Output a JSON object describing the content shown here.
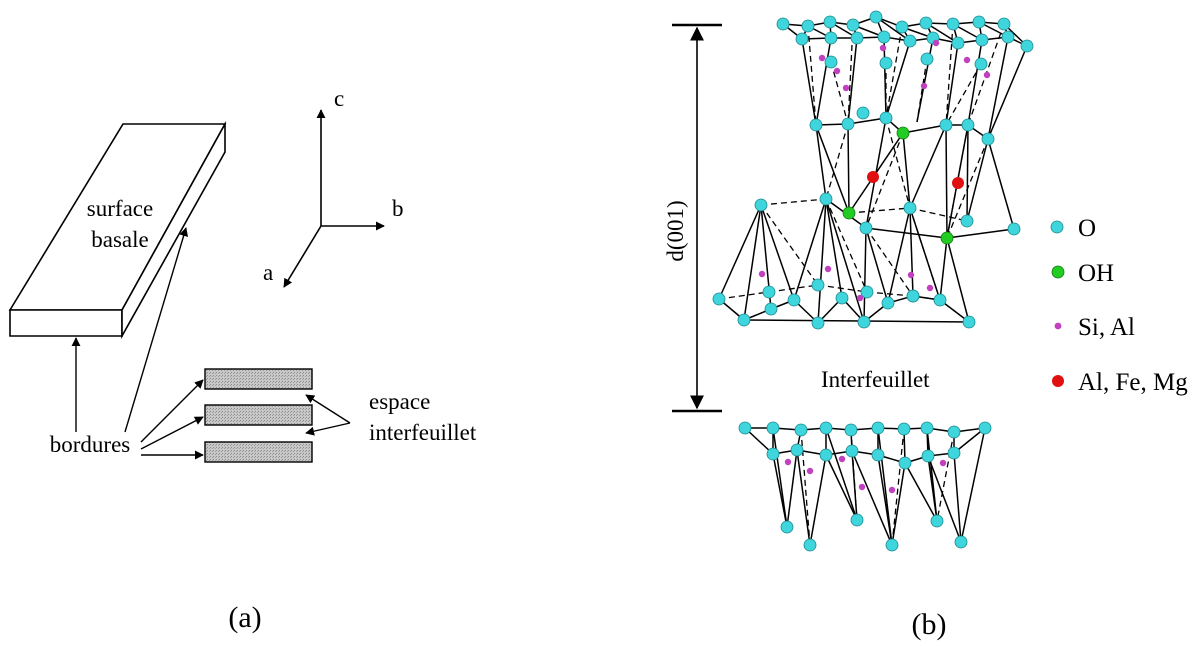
{
  "panel_a": {
    "surface_label_line1": "surface",
    "surface_label_line2": "basale",
    "axis_c": "c",
    "axis_b": "b",
    "axis_a": "a",
    "bordures_label": "bordures",
    "espace_label_line1": "espace",
    "espace_label_line2": "interfeuillet",
    "caption": "(a)"
  },
  "panel_b": {
    "d_label": "d(001)",
    "interlayer_label": "Interfeuillet",
    "caption": "(b)",
    "legend": [
      {
        "label": "O",
        "color": "#3ed6dc",
        "icon": "oxygen-atom-icon"
      },
      {
        "label": "OH",
        "color": "#22cc22",
        "icon": "hydroxyl-atom-icon"
      },
      {
        "label": "Si, Al",
        "color": "#c040c0",
        "icon": "si-al-atom-icon"
      },
      {
        "label": "Al, Fe, Mg",
        "color": "#e01010",
        "icon": "octahedral-cation-icon"
      }
    ]
  }
}
